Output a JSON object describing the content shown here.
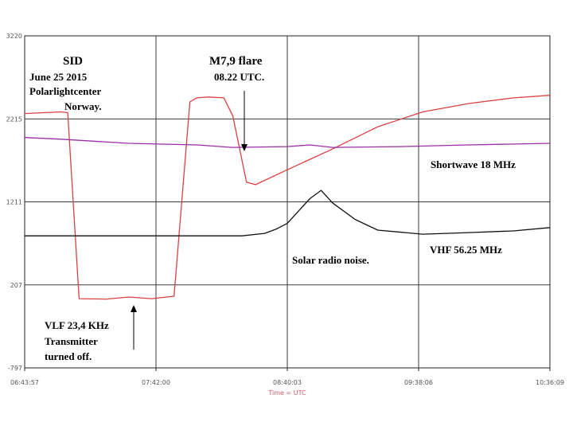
{
  "chart_data": {
    "type": "line",
    "xlabel": "Time = UTC",
    "x_ticks": [
      "06:43:57",
      "07:42:00",
      "08:40:03",
      "09:38:06",
      "10:36:09"
    ],
    "y_ticks": [
      3220,
      2215,
      1211,
      207,
      -797
    ],
    "ylim": [
      -797,
      3220
    ],
    "grid": true,
    "series": [
      {
        "name": "VLF 23,4 KHz",
        "color": "#d94040",
        "x": [
          "06:43:57",
          "07:00:00",
          "07:03:00",
          "07:08:00",
          "07:20:00",
          "07:30:00",
          "07:40:00",
          "07:50:00",
          "07:57:00",
          "08:00:00",
          "08:05:00",
          "08:12:00",
          "08:16:00",
          "08:19:00",
          "08:22:00",
          "08:26:00",
          "08:40:00",
          "09:00:00",
          "09:20:00",
          "09:40:00",
          "10:00:00",
          "10:20:00",
          "10:36:09"
        ],
        "values": [
          2280,
          2300,
          2290,
          40,
          35,
          60,
          40,
          70,
          2420,
          2470,
          2480,
          2470,
          2250,
          1850,
          1450,
          1420,
          1600,
          1850,
          2120,
          2300,
          2400,
          2470,
          2500
        ]
      },
      {
        "name": "Shortwave 18 MHz",
        "color": "#9a2fa5",
        "x": [
          "06:43:57",
          "07:00:00",
          "07:30:00",
          "08:00:00",
          "08:16:00",
          "08:40:00",
          "08:50:00",
          "09:00:00",
          "09:30:00",
          "10:00:00",
          "10:36:09"
        ],
        "values": [
          1990,
          1970,
          1920,
          1900,
          1870,
          1880,
          1900,
          1870,
          1880,
          1900,
          1920
        ]
      },
      {
        "name": "VHF 56.25 MHz",
        "color": "#111111",
        "x": [
          "06:43:57",
          "07:30:00",
          "08:20:00",
          "08:30:00",
          "08:35:00",
          "08:40:00",
          "08:45:00",
          "08:50:00",
          "08:55:00",
          "09:00:00",
          "09:10:00",
          "09:20:00",
          "09:40:00",
          "10:00:00",
          "10:20:00",
          "10:36:09"
        ],
        "values": [
          800,
          800,
          800,
          830,
          880,
          950,
          1100,
          1250,
          1350,
          1200,
          1000,
          870,
          820,
          840,
          860,
          900
        ]
      }
    ],
    "annotations": [
      "SID",
      "June 25 2015",
      "Polarlightcenter",
      "Norway.",
      "M7,9 flare",
      "08.22 UTC.",
      "Shortwave 18 MHz",
      "Solar radio noise.",
      "VHF 56.25 MHz",
      "VLF 23,4 KHz",
      "Transmitter",
      "turned off."
    ]
  }
}
